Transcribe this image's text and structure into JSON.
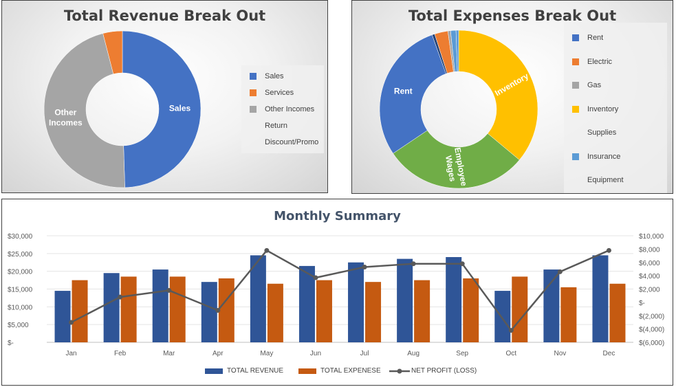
{
  "chart_data": [
    {
      "type": "pie",
      "title": "Total Revenue Break Out",
      "categories": [
        "Sales",
        "Services",
        "Other Incomes",
        "Return",
        "Discount/Promo"
      ],
      "values": [
        49.5,
        4,
        46.5,
        0,
        0
      ],
      "slice_labels": [
        "Sales",
        "",
        "Other Incomes",
        "",
        ""
      ],
      "legend_placement": "right",
      "colors": [
        "#4472c4",
        "#ed7d31",
        "#a5a5a5",
        "#ffc000",
        "#5b9bd5"
      ]
    },
    {
      "type": "pie",
      "title": "Total Expenses Break Out",
      "categories": [
        "Rent",
        "Electric",
        "Gas",
        "Inventory",
        "Supplies",
        "Insurance",
        "Equipment",
        "Employee Wages"
      ],
      "values": [
        26.5,
        2.5,
        0.5,
        33,
        0.5,
        1,
        0.5,
        27
      ],
      "ring_order": [
        "Inventory",
        "Employee Wages",
        "Rent",
        "Equipment",
        "Electric",
        "Gas",
        "Insurance",
        "Supplies"
      ],
      "slice_labels": {
        "Inventory": "Inventory",
        "Employee Wages": "Employee Wages",
        "Rent": "Rent"
      },
      "legend_items": [
        "Rent",
        "Electric",
        "Gas",
        "Inventory",
        "Supplies",
        "Insurance",
        "Equipment"
      ],
      "legend_placement": "right",
      "colors": {
        "Rent": "#4472c4",
        "Electric": "#ed7d31",
        "Gas": "#a5a5a5",
        "Inventory": "#ffc000",
        "Supplies": "#5b9bd5",
        "Insurance": "#5b9bd5",
        "Equipment": "#264478",
        "Employee Wages": "#70ad47",
        "Dark": "#9e480e"
      }
    },
    {
      "type": "bar",
      "title": "Monthly Summary",
      "categories": [
        "Jan",
        "Feb",
        "Mar",
        "Apr",
        "May",
        "Jun",
        "Jul",
        "Aug",
        "Sep",
        "Oct",
        "Nov",
        "Dec"
      ],
      "series": [
        {
          "name": "TOTAL REVENUE",
          "type": "bar",
          "axis": "left",
          "color": "#2f5597",
          "values": [
            14500,
            19500,
            20500,
            17000,
            24500,
            21500,
            22500,
            23500,
            24000,
            14500,
            20500,
            24500
          ]
        },
        {
          "name": "TOTAL EXPENESE",
          "type": "bar",
          "axis": "left",
          "color": "#c55a11",
          "values": [
            17500,
            18500,
            18500,
            18000,
            16500,
            17500,
            17000,
            17500,
            18000,
            18500,
            15500,
            16500
          ]
        },
        {
          "name": "NET PROFIT (LOSS)",
          "type": "line",
          "axis": "right",
          "color": "#595959",
          "values": [
            -3000,
            800,
            1800,
            -1200,
            7800,
            3700,
            5300,
            5800,
            5800,
            -4200,
            4600,
            7800
          ]
        }
      ],
      "ylim": [
        0,
        30000
      ],
      "y_ticks": [
        "$30,000",
        "$25,000",
        "$20,000",
        "$15,000",
        "$10,000",
        "$5,000",
        "$-"
      ],
      "y2lim": [
        -6000,
        10000
      ],
      "y2_ticks": [
        "$10,000",
        "$8,000",
        "$6,000",
        "$4,000",
        "$2,000",
        "$-",
        "$(2,000)",
        "$(4,000)",
        "$(6,000)"
      ],
      "grid": true,
      "legend_placement": "bottom"
    }
  ]
}
